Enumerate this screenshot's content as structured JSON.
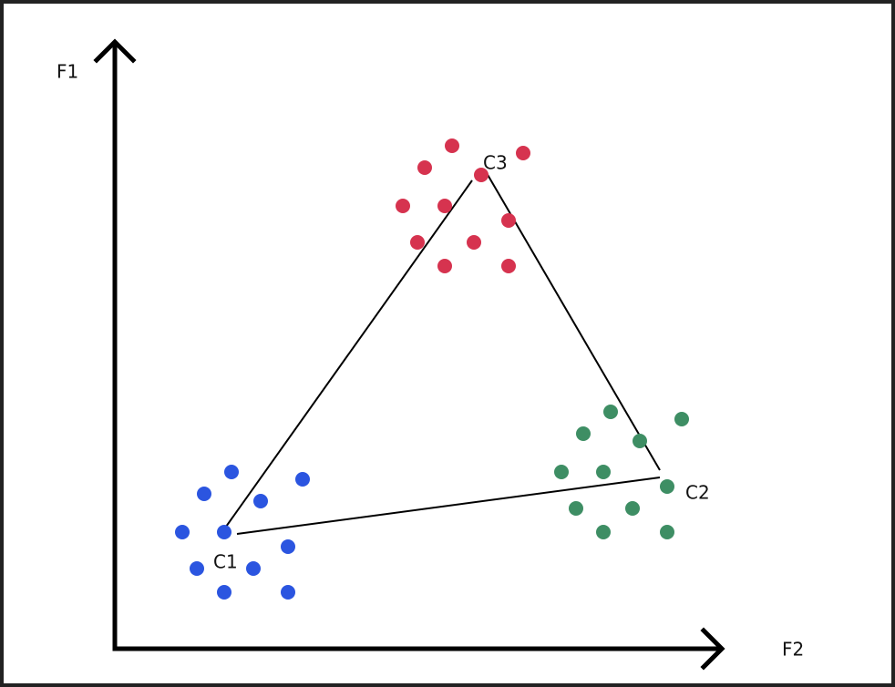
{
  "axes": {
    "y_label": "F1",
    "x_label": "F2"
  },
  "clusters": [
    {
      "label": "C1"
    },
    {
      "label": "C2"
    },
    {
      "label": "C3"
    }
  ]
}
